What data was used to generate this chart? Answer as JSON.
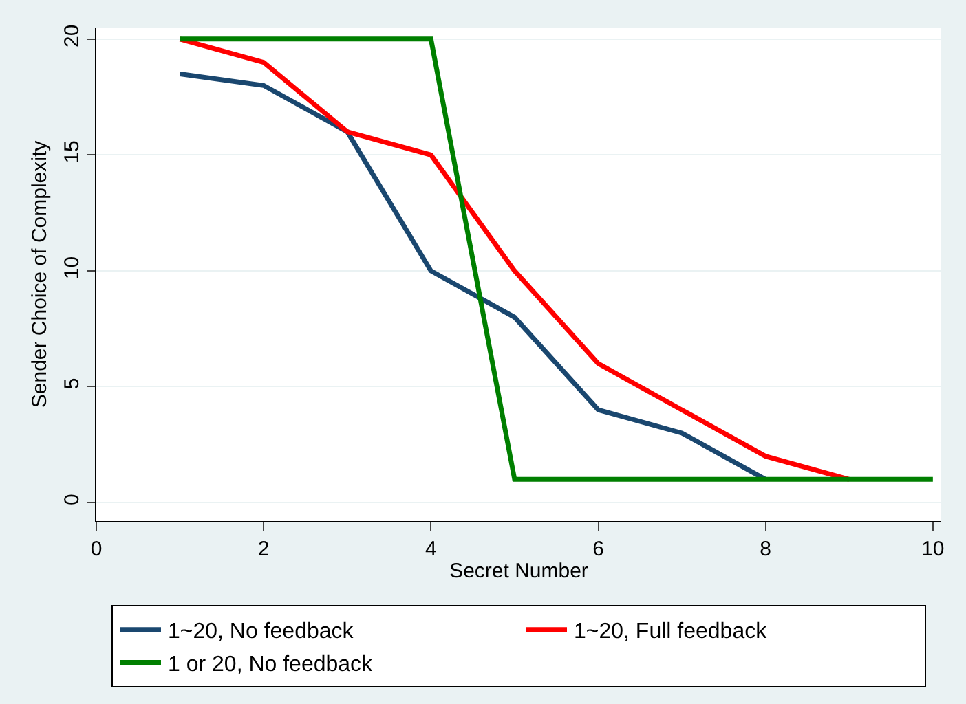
{
  "chart_data": {
    "type": "line",
    "xlabel": "Secret Number",
    "ylabel": "Sender Choice of Complexity",
    "xlim": [
      0,
      10.1
    ],
    "xticks": [
      0,
      2,
      4,
      6,
      8,
      10
    ],
    "ylim": [
      -0.8,
      20.5
    ],
    "yticks": [
      0,
      5,
      10,
      15,
      20
    ],
    "grid": "y",
    "legend": "bottom",
    "marker": "none",
    "line_style": "solid",
    "series": [
      {
        "name": "1~20, No feedback",
        "color": "#1a476f",
        "x": [
          1,
          2,
          3,
          4,
          5,
          6,
          7,
          8
        ],
        "values": [
          18.5,
          18,
          16,
          10,
          8,
          4,
          3,
          1
        ]
      },
      {
        "name": "1~20, Full feedback",
        "color": "#ff0000",
        "x": [
          1,
          2,
          3,
          4,
          5,
          6,
          7,
          8,
          9
        ],
        "values": [
          20,
          19,
          16,
          15,
          10,
          6,
          4,
          2,
          1
        ]
      },
      {
        "name": "1 or 20, No feedback",
        "color": "#007f00",
        "x": [
          1,
          2,
          3,
          4,
          5,
          6,
          7,
          8,
          9,
          10
        ],
        "values": [
          20,
          20,
          20,
          20,
          1,
          1,
          1,
          1,
          1,
          1
        ]
      }
    ]
  }
}
